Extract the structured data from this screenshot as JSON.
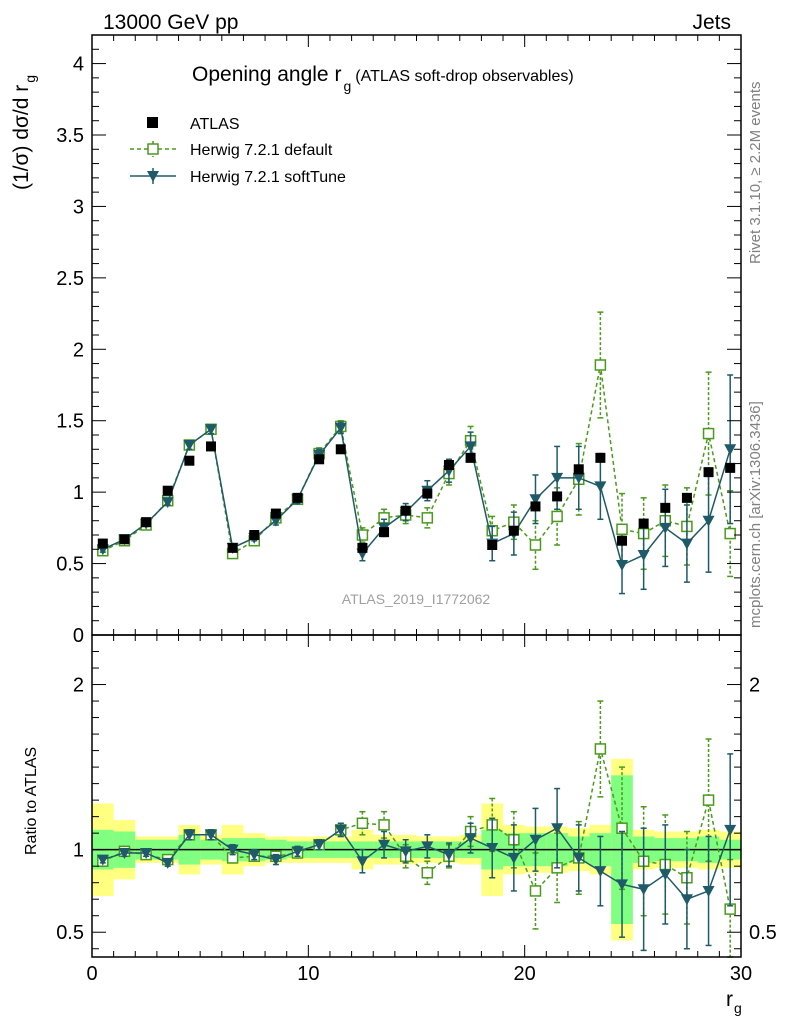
{
  "header": {
    "energy_label": "13000 GeV pp",
    "process_label": "Jets",
    "rivet_label": "Rivet 3.1.10, ≥ 2.2M events",
    "mcplots_label": "mcplots.cern.ch [arXiv:1306.3436]"
  },
  "chart_data": {
    "type": "line",
    "title_main": "Opening angle r",
    "title_sub": "g",
    "title_note": "(ATLAS soft-drop observables)",
    "analysis_label": "ATLAS_2019_I1772062",
    "xlabel": "r",
    "xlabel_sub": "g",
    "ylabel_top": "(1/σ) dσ/d r",
    "ylabel_top_sub": "g",
    "ylabel_bottom": "Ratio to ATLAS",
    "xlim": [
      0,
      30
    ],
    "ylim_top": [
      0,
      4.2
    ],
    "ylim_bottom": [
      0.35,
      2.3
    ],
    "x_ticks": [
      0,
      10,
      20,
      30
    ],
    "x_tick_labels": [
      "0",
      "10",
      "20",
      "30"
    ],
    "y_ticks_top": [
      0,
      0.5,
      1,
      1.5,
      2,
      2.5,
      3,
      3.5,
      4
    ],
    "y_tick_labels_top": [
      "0",
      "0.5",
      "1",
      "1.5",
      "2",
      "2.5",
      "3",
      "3.5",
      "4"
    ],
    "y_ticks_bottom": [
      0.5,
      1,
      2
    ],
    "y_tick_labels_bottom": [
      "0.5",
      "1",
      "2"
    ],
    "x": [
      0.5,
      1.5,
      2.5,
      3.5,
      4.5,
      5.5,
      6.5,
      7.5,
      8.5,
      9.5,
      10.5,
      11.5,
      12.5,
      13.5,
      14.5,
      15.5,
      16.5,
      17.5,
      18.5,
      19.5,
      20.5,
      21.5,
      22.5,
      23.5,
      24.5,
      25.5,
      26.5,
      27.5,
      28.5,
      29.5
    ],
    "legend": [
      "ATLAS",
      "Herwig 7.2.1 default",
      "Herwig 7.2.1 softTune"
    ],
    "series": [
      {
        "name": "ATLAS",
        "color": "#000000",
        "values": [
          0.64,
          0.67,
          0.79,
          1.01,
          1.22,
          1.32,
          0.61,
          0.7,
          0.85,
          0.96,
          1.23,
          1.3,
          0.61,
          0.72,
          0.87,
          0.99,
          1.19,
          1.24,
          0.63,
          0.73,
          0.9,
          0.97,
          1.16,
          1.24,
          0.66,
          0.78,
          0.89,
          0.96,
          1.14,
          1.17
        ]
      },
      {
        "name": "Herwig 7.2.1 default",
        "color": "#4a9a1c",
        "values": [
          0.59,
          0.66,
          0.77,
          0.94,
          1.33,
          1.44,
          0.57,
          0.66,
          0.82,
          0.95,
          1.27,
          1.46,
          0.7,
          0.82,
          0.84,
          0.82,
          1.13,
          1.36,
          0.73,
          0.79,
          0.63,
          0.83,
          1.09,
          1.89,
          0.74,
          0.71,
          0.8,
          0.76,
          1.41,
          0.71
        ],
        "errors": [
          0.02,
          0.02,
          0.02,
          0.02,
          0.03,
          0.03,
          0.02,
          0.02,
          0.03,
          0.03,
          0.04,
          0.04,
          0.05,
          0.06,
          0.06,
          0.07,
          0.08,
          0.1,
          0.1,
          0.12,
          0.17,
          0.2,
          0.25,
          0.37,
          0.25,
          0.25,
          0.25,
          0.27,
          0.43,
          0.3
        ],
        "ratio": [
          0.93,
          0.99,
          0.97,
          0.94,
          1.09,
          1.09,
          0.95,
          0.96,
          0.96,
          0.98,
          1.03,
          1.12,
          1.16,
          1.15,
          0.96,
          0.86,
          0.96,
          1.11,
          1.15,
          1.06,
          0.75,
          0.89,
          0.95,
          1.61,
          1.13,
          0.93,
          0.91,
          0.83,
          1.3,
          0.64
        ],
        "ratio_errors": [
          0.02,
          0.02,
          0.02,
          0.02,
          0.03,
          0.03,
          0.03,
          0.03,
          0.03,
          0.03,
          0.03,
          0.04,
          0.07,
          0.08,
          0.07,
          0.07,
          0.07,
          0.09,
          0.16,
          0.17,
          0.23,
          0.21,
          0.22,
          0.29,
          0.37,
          0.33,
          0.3,
          0.28,
          0.37,
          0.3
        ]
      },
      {
        "name": "Herwig 7.2.1 softTune",
        "color": "#1e5a68",
        "values": [
          0.6,
          0.67,
          0.78,
          0.93,
          1.33,
          1.44,
          0.61,
          0.68,
          0.8,
          0.95,
          1.26,
          1.45,
          0.57,
          0.75,
          0.86,
          1.01,
          1.15,
          1.32,
          0.64,
          0.71,
          0.95,
          1.1,
          1.1,
          1.04,
          0.49,
          0.56,
          0.75,
          0.64,
          0.8,
          1.3
        ],
        "errors": [
          0.02,
          0.02,
          0.02,
          0.02,
          0.03,
          0.03,
          0.02,
          0.02,
          0.03,
          0.03,
          0.04,
          0.04,
          0.05,
          0.06,
          0.06,
          0.07,
          0.08,
          0.1,
          0.12,
          0.15,
          0.17,
          0.22,
          0.22,
          0.23,
          0.2,
          0.24,
          0.27,
          0.27,
          0.36,
          0.52
        ],
        "ratio": [
          0.94,
          0.98,
          0.98,
          0.92,
          1.09,
          1.09,
          1.0,
          0.97,
          0.94,
          0.99,
          1.03,
          1.12,
          0.93,
          1.03,
          0.99,
          1.02,
          0.97,
          1.07,
          1.01,
          0.95,
          1.06,
          1.13,
          0.95,
          0.87,
          0.79,
          0.76,
          0.85,
          0.7,
          0.75,
          1.12
        ],
        "ratio_errors": [
          0.02,
          0.02,
          0.02,
          0.02,
          0.03,
          0.03,
          0.03,
          0.03,
          0.03,
          0.03,
          0.03,
          0.04,
          0.07,
          0.08,
          0.07,
          0.07,
          0.07,
          0.09,
          0.18,
          0.2,
          0.19,
          0.24,
          0.2,
          0.21,
          0.32,
          0.37,
          0.3,
          0.3,
          0.33,
          0.46
        ]
      }
    ],
    "bands": {
      "green_half_width": [
        0.12,
        0.11,
        0.06,
        0.06,
        0.09,
        0.06,
        0.07,
        0.07,
        0.06,
        0.05,
        0.05,
        0.05,
        0.05,
        0.05,
        0.05,
        0.05,
        0.05,
        0.05,
        0.12,
        0.1,
        0.1,
        0.1,
        0.08,
        0.1,
        0.45,
        0.08,
        0.07,
        0.07,
        0.08,
        0.06
      ],
      "yellow_half_width": [
        0.28,
        0.18,
        0.08,
        0.08,
        0.15,
        0.09,
        0.15,
        0.1,
        0.08,
        0.08,
        0.08,
        0.08,
        0.12,
        0.09,
        0.09,
        0.08,
        0.08,
        0.09,
        0.28,
        0.15,
        0.14,
        0.14,
        0.13,
        0.15,
        0.55,
        0.12,
        0.11,
        0.11,
        0.12,
        0.11
      ]
    }
  }
}
